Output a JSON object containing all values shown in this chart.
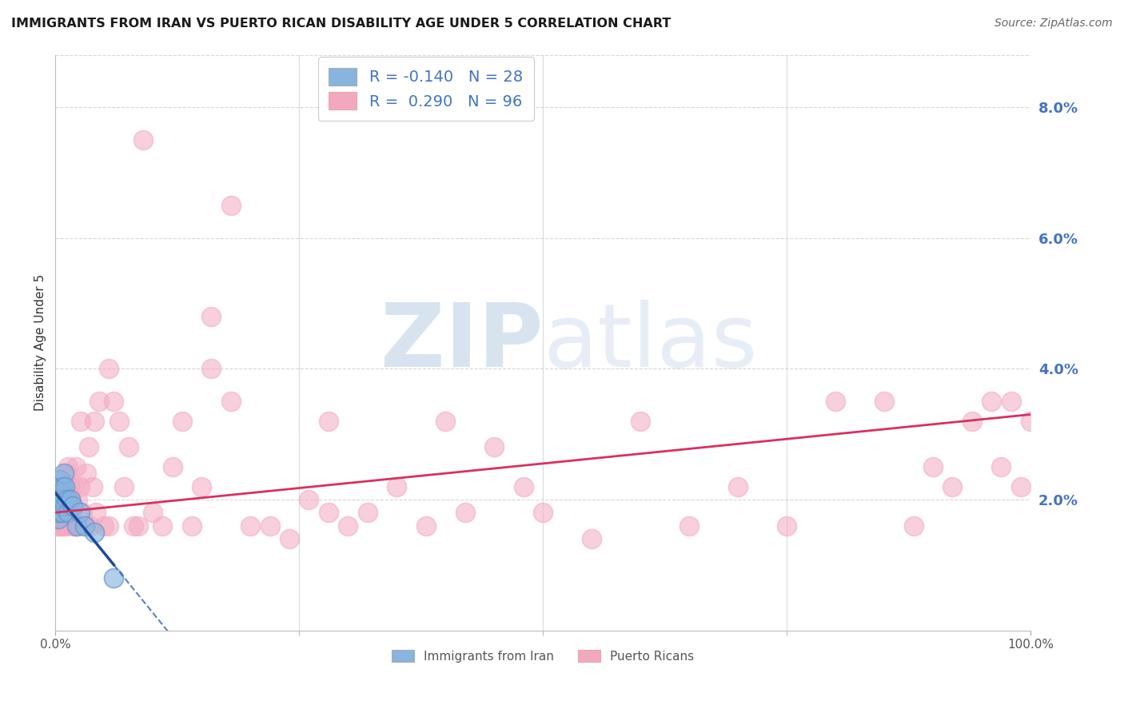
{
  "title": "IMMIGRANTS FROM IRAN VS PUERTO RICAN DISABILITY AGE UNDER 5 CORRELATION CHART",
  "source": "Source: ZipAtlas.com",
  "ylabel": "Disability Age Under 5",
  "legend_label_blue": "Immigrants from Iran",
  "legend_label_pink": "Puerto Ricans",
  "legend_r_blue": "-0.140",
  "legend_n_blue": "28",
  "legend_r_pink": "0.290",
  "legend_n_pink": "96",
  "blue_scatter_x": [
    0.001,
    0.001,
    0.002,
    0.002,
    0.003,
    0.003,
    0.003,
    0.004,
    0.004,
    0.005,
    0.005,
    0.006,
    0.006,
    0.007,
    0.007,
    0.008,
    0.009,
    0.01,
    0.01,
    0.012,
    0.013,
    0.015,
    0.018,
    0.022,
    0.025,
    0.03,
    0.04,
    0.06
  ],
  "blue_scatter_y": [
    0.021,
    0.019,
    0.02,
    0.018,
    0.022,
    0.019,
    0.017,
    0.021,
    0.018,
    0.023,
    0.02,
    0.021,
    0.019,
    0.022,
    0.018,
    0.02,
    0.024,
    0.019,
    0.022,
    0.02,
    0.018,
    0.02,
    0.019,
    0.016,
    0.018,
    0.016,
    0.015,
    0.008
  ],
  "pink_scatter_x": [
    0.001,
    0.001,
    0.002,
    0.002,
    0.003,
    0.003,
    0.004,
    0.004,
    0.005,
    0.005,
    0.006,
    0.006,
    0.007,
    0.007,
    0.008,
    0.008,
    0.009,
    0.009,
    0.01,
    0.01,
    0.011,
    0.012,
    0.012,
    0.013,
    0.014,
    0.015,
    0.016,
    0.017,
    0.018,
    0.019,
    0.02,
    0.021,
    0.022,
    0.023,
    0.025,
    0.026,
    0.028,
    0.03,
    0.032,
    0.034,
    0.036,
    0.038,
    0.04,
    0.042,
    0.045,
    0.05,
    0.055,
    0.06,
    0.065,
    0.07,
    0.075,
    0.08,
    0.085,
    0.09,
    0.1,
    0.11,
    0.12,
    0.13,
    0.14,
    0.15,
    0.16,
    0.18,
    0.2,
    0.22,
    0.24,
    0.26,
    0.28,
    0.3,
    0.32,
    0.35,
    0.38,
    0.4,
    0.42,
    0.45,
    0.48,
    0.5,
    0.55,
    0.6,
    0.65,
    0.7,
    0.75,
    0.8,
    0.85,
    0.88,
    0.9,
    0.92,
    0.94,
    0.96,
    0.97,
    0.98,
    0.99,
    1.0,
    0.16,
    0.18,
    0.055,
    0.28
  ],
  "pink_scatter_y": [
    0.022,
    0.018,
    0.02,
    0.016,
    0.021,
    0.018,
    0.022,
    0.016,
    0.019,
    0.021,
    0.018,
    0.022,
    0.019,
    0.016,
    0.021,
    0.018,
    0.02,
    0.016,
    0.022,
    0.018,
    0.024,
    0.02,
    0.016,
    0.025,
    0.018,
    0.022,
    0.02,
    0.018,
    0.016,
    0.022,
    0.016,
    0.025,
    0.016,
    0.02,
    0.022,
    0.032,
    0.018,
    0.016,
    0.024,
    0.028,
    0.016,
    0.022,
    0.032,
    0.018,
    0.035,
    0.016,
    0.04,
    0.035,
    0.032,
    0.022,
    0.028,
    0.016,
    0.016,
    0.075,
    0.018,
    0.016,
    0.025,
    0.032,
    0.016,
    0.022,
    0.048,
    0.065,
    0.016,
    0.016,
    0.014,
    0.02,
    0.032,
    0.016,
    0.018,
    0.022,
    0.016,
    0.032,
    0.018,
    0.028,
    0.022,
    0.018,
    0.014,
    0.032,
    0.016,
    0.022,
    0.016,
    0.035,
    0.035,
    0.016,
    0.025,
    0.022,
    0.032,
    0.035,
    0.025,
    0.035,
    0.022,
    0.032,
    0.04,
    0.035,
    0.016,
    0.018
  ],
  "blue_color": "#88b4e0",
  "pink_color": "#f4a8c0",
  "blue_line_color": "#1a4a9e",
  "pink_line_color": "#e0406080",
  "background_color": "#ffffff",
  "title_color": "#1a1a1a",
  "source_color": "#666666",
  "axis_label_color": "#333333",
  "right_axis_color": "#4472c4",
  "grid_color": "#cccccc",
  "ytick_vals": [
    0.0,
    0.02,
    0.04,
    0.06,
    0.08
  ],
  "ytick_labels": [
    "",
    "2.0%",
    "4.0%",
    "6.0%",
    "8.0%"
  ],
  "ylim": [
    0.0,
    0.088
  ],
  "xlim": [
    0.0,
    1.0
  ],
  "watermark_zip": "ZIP",
  "watermark_atlas": "atlas",
  "blue_line_x_solid_end": 0.06,
  "blue_line_x_dash_end": 0.38
}
